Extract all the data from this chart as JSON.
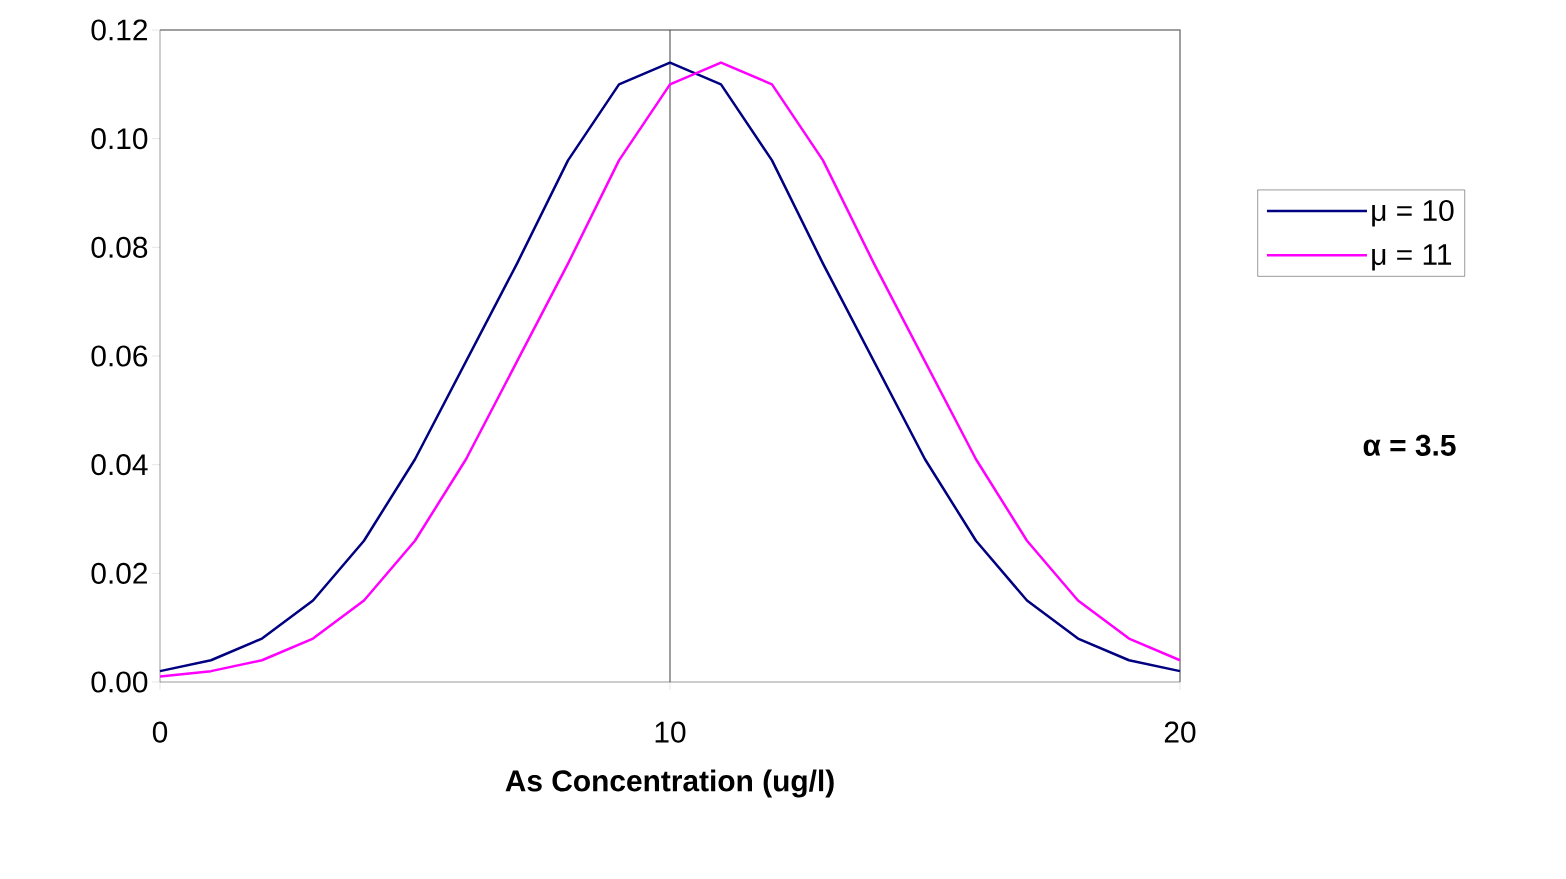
{
  "chart_data": {
    "type": "line",
    "xlabel": "As Concentration (ug/l)",
    "x": [
      0,
      1,
      2,
      3,
      4,
      5,
      6,
      7,
      8,
      9,
      10,
      11,
      12,
      13,
      14,
      15,
      16,
      17,
      18,
      19,
      20
    ],
    "series": [
      {
        "name": "μ = 10",
        "color": "#000080",
        "values": [
          0.002,
          0.004,
          0.008,
          0.015,
          0.026,
          0.041,
          0.059,
          0.077,
          0.096,
          0.11,
          0.114,
          0.11,
          0.096,
          0.077,
          0.059,
          0.041,
          0.026,
          0.015,
          0.008,
          0.004,
          0.002
        ]
      },
      {
        "name": "μ = 11",
        "color": "#ff00ff",
        "values": [
          0.001,
          0.002,
          0.004,
          0.008,
          0.015,
          0.026,
          0.041,
          0.059,
          0.077,
          0.096,
          0.11,
          0.114,
          0.11,
          0.096,
          0.077,
          0.059,
          0.041,
          0.026,
          0.015,
          0.008,
          0.004
        ]
      }
    ],
    "xlim": [
      0,
      20
    ],
    "ylim": [
      0,
      0.12
    ],
    "xticks": [
      0,
      10,
      20
    ],
    "yticks": [
      {
        "value": 0,
        "label": "0.00"
      },
      {
        "value": 0.02,
        "label": "0.02"
      },
      {
        "value": 0.04,
        "label": "0.04"
      },
      {
        "value": 0.06,
        "label": "0.06"
      },
      {
        "value": 0.08,
        "label": "0.08"
      },
      {
        "value": 0.1,
        "label": "0.10"
      },
      {
        "value": 0.12,
        "label": "0.12"
      }
    ],
    "ref_lines": [
      {
        "axis": "x",
        "value": 10,
        "color": "#404040"
      }
    ],
    "legend": "right",
    "annotations": [
      "**α = 3.5**"
    ]
  }
}
